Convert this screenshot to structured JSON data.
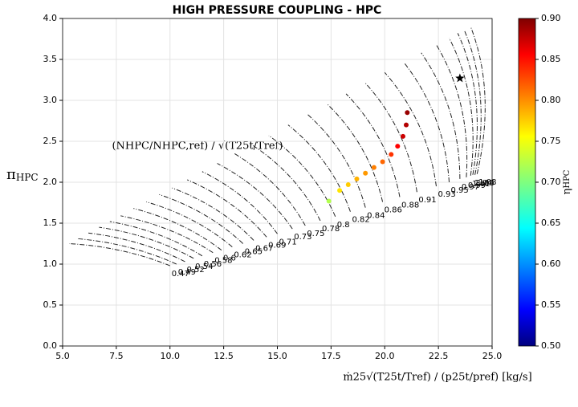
{
  "chart_data": {
    "type": "map",
    "title": "HIGH PRESSURE COUPLING - HPC",
    "xlabel": "ṁ25√(T25t/Tref) / (p25t/pref)  [kg/s]",
    "ylabel": {
      "symbol": "π",
      "subscript": "HPC"
    },
    "speed_annotation": "(NHPC/NHPC,ref) / √(T25t/Tref)",
    "colorbar_label": {
      "symbol": "η",
      "subscript": "HPC"
    },
    "xlim": [
      5,
      25
    ],
    "xticks": [
      {
        "value": 5,
        "label": "5.0"
      },
      7.5,
      {
        "value": 10,
        "label": "10.0"
      },
      12.5,
      {
        "value": 15,
        "label": "15.0"
      },
      17.5,
      {
        "value": 20,
        "label": "20.0"
      },
      22.5,
      {
        "value": 25,
        "label": "25.0"
      }
    ],
    "ylim": [
      0,
      4
    ],
    "yticks": [
      {
        "value": 0,
        "label": "0.0"
      },
      0.5,
      {
        "value": 1,
        "label": "1.0"
      },
      1.5,
      {
        "value": 2,
        "label": "2.0"
      },
      2.5,
      {
        "value": 3,
        "label": "3.0"
      },
      3.5,
      {
        "value": 4,
        "label": "4.0"
      }
    ],
    "clim": [
      0.5,
      0.9
    ],
    "cticks": [
      {
        "value": 0.5,
        "label": "0.50"
      },
      0.55,
      {
        "value": 0.6,
        "label": "0.60"
      },
      0.65,
      {
        "value": 0.7,
        "label": "0.70"
      },
      0.75,
      {
        "value": 0.8,
        "label": "0.80"
      },
      0.85,
      {
        "value": 0.9,
        "label": "0.90"
      }
    ],
    "colormap": "jet",
    "grid": true,
    "speed_lines": [
      {
        "label": "0.47",
        "x": [
          10.0,
          5.3
        ],
        "y": [
          0.98,
          1.25
        ]
      },
      {
        "label": "0.49",
        "x": [
          10.3,
          5.7
        ],
        "y": [
          1.0,
          1.31
        ]
      },
      {
        "label": "0.52",
        "x": [
          10.7,
          6.2
        ],
        "y": [
          1.03,
          1.38
        ]
      },
      {
        "label": "0.54",
        "x": [
          11.1,
          6.7
        ],
        "y": [
          1.07,
          1.45
        ]
      },
      {
        "label": "0.56",
        "x": [
          11.5,
          7.2
        ],
        "y": [
          1.1,
          1.52
        ]
      },
      {
        "label": "0.58",
        "x": [
          12.0,
          7.7
        ],
        "y": [
          1.14,
          1.59
        ]
      },
      {
        "label": "0.6",
        "x": [
          12.4,
          8.3
        ],
        "y": [
          1.17,
          1.68
        ]
      },
      {
        "label": "0.62",
        "x": [
          12.9,
          8.9
        ],
        "y": [
          1.21,
          1.76
        ]
      },
      {
        "label": "0.65",
        "x": [
          13.4,
          9.5
        ],
        "y": [
          1.25,
          1.85
        ]
      },
      {
        "label": "0.67",
        "x": [
          13.9,
          10.1
        ],
        "y": [
          1.29,
          1.93
        ]
      },
      {
        "label": "0.69",
        "x": [
          14.5,
          10.8
        ],
        "y": [
          1.33,
          2.03
        ]
      },
      {
        "label": "0.71",
        "x": [
          15.0,
          11.5
        ],
        "y": [
          1.37,
          2.13
        ]
      },
      {
        "label": "0.73",
        "x": [
          15.7,
          12.2
        ],
        "y": [
          1.43,
          2.23
        ]
      },
      {
        "label": "0.75",
        "x": [
          16.3,
          13.0
        ],
        "y": [
          1.47,
          2.35
        ]
      },
      {
        "label": "0.78",
        "x": [
          17.0,
          13.8
        ],
        "y": [
          1.53,
          2.46
        ]
      },
      {
        "label": "0.8",
        "x": [
          17.7,
          14.6
        ],
        "y": [
          1.58,
          2.57
        ]
      },
      {
        "label": "0.82",
        "x": [
          18.4,
          15.5
        ],
        "y": [
          1.64,
          2.7
        ]
      },
      {
        "label": "0.84",
        "x": [
          19.1,
          16.4
        ],
        "y": [
          1.69,
          2.83
        ]
      },
      {
        "label": "0.86",
        "x": [
          19.9,
          17.3
        ],
        "y": [
          1.76,
          2.96
        ]
      },
      {
        "label": "0.88",
        "x": [
          20.7,
          18.2
        ],
        "y": [
          1.82,
          3.08
        ]
      },
      {
        "label": "0.91",
        "x": [
          21.5,
          19.1
        ],
        "y": [
          1.88,
          3.21
        ]
      },
      {
        "label": "0.93",
        "x": [
          22.4,
          20.0
        ],
        "y": [
          1.95,
          3.34
        ]
      },
      {
        "label": "0.95",
        "x": [
          23.0,
          20.9
        ],
        "y": [
          2.0,
          3.46
        ]
      },
      {
        "label": "0.97",
        "x": [
          23.5,
          21.7
        ],
        "y": [
          2.04,
          3.58
        ]
      },
      {
        "label": "0.99",
        "x": [
          23.8,
          22.4
        ],
        "y": [
          2.06,
          3.68
        ]
      },
      {
        "label": "1.01",
        "x": [
          24.0,
          23.0
        ],
        "y": [
          2.08,
          3.76
        ]
      },
      {
        "label": "1.04",
        "x": [
          24.1,
          23.4
        ],
        "y": [
          2.09,
          3.82
        ]
      },
      {
        "label": "1.06",
        "x": [
          24.2,
          23.7
        ],
        "y": [
          2.09,
          3.86
        ]
      },
      {
        "label": "1.08",
        "x": [
          24.3,
          24.0
        ],
        "y": [
          2.1,
          3.9
        ]
      }
    ],
    "operating_points": {
      "x": [
        17.4,
        17.9,
        18.3,
        18.7,
        19.1,
        19.5,
        19.9,
        20.3,
        20.6,
        20.85,
        21.0,
        21.05
      ],
      "y": [
        1.77,
        1.9,
        1.97,
        2.04,
        2.11,
        2.18,
        2.25,
        2.34,
        2.44,
        2.56,
        2.7,
        2.85
      ],
      "c": [
        0.72,
        0.76,
        0.77,
        0.78,
        0.79,
        0.8,
        0.81,
        0.83,
        0.85,
        0.87,
        0.88,
        0.89
      ]
    },
    "design_point": {
      "x": 23.5,
      "y": 3.27
    }
  }
}
